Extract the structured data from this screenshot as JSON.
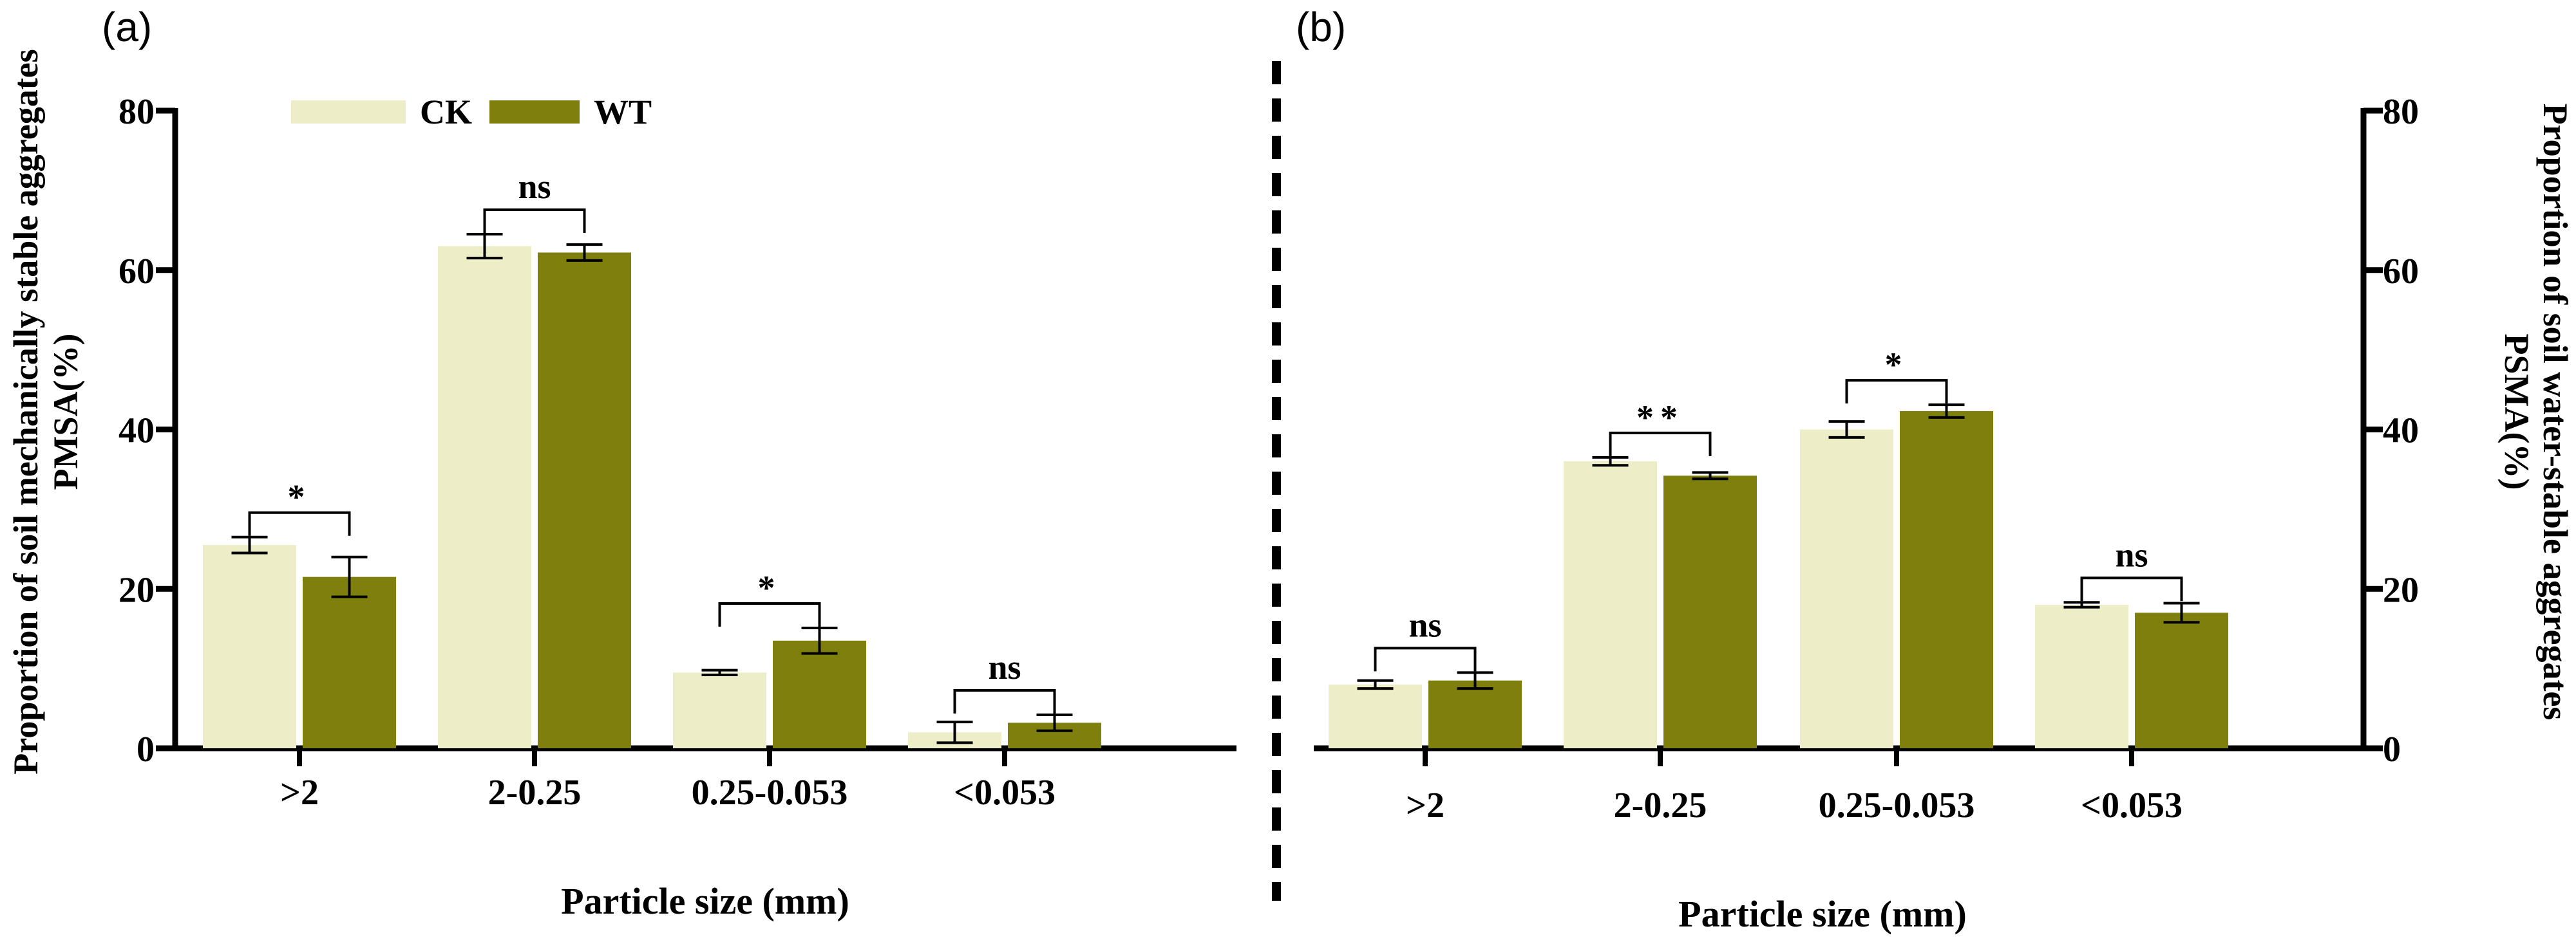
{
  "chart_data": [
    {
      "panel": "(a)",
      "type": "bar",
      "categories": [
        ">2",
        "2-0.25",
        "0.25-0.053",
        "<0.053"
      ],
      "series": [
        {
          "name": "CK",
          "values": [
            25.5,
            63.0,
            9.5,
            2.0
          ],
          "errors": [
            1.0,
            1.5,
            0.3,
            1.3
          ],
          "color": "#EDEDC8"
        },
        {
          "name": "WT",
          "values": [
            21.5,
            62.2,
            13.5,
            3.2
          ],
          "errors": [
            2.5,
            1.0,
            1.6,
            1.0
          ],
          "color": "#7F7F0E"
        }
      ],
      "significance": [
        "*",
        "ns",
        "*",
        "ns"
      ],
      "ylabel": [
        "Proportion of soil mechanically stable aggregates",
        "PMSA(%)"
      ],
      "xlabel": "Particle size (mm)",
      "ylim": [
        0,
        80
      ],
      "yticks": [
        0,
        20,
        40,
        60,
        80
      ],
      "yaxis_side": "left",
      "grid": false,
      "legend_placement": "top-left"
    },
    {
      "panel": "(b)",
      "type": "bar",
      "categories": [
        ">2",
        "2-0.25",
        "0.25-0.053",
        "<0.053"
      ],
      "series": [
        {
          "name": "CK",
          "values": [
            8.0,
            36.0,
            40.0,
            18.0
          ],
          "errors": [
            0.5,
            0.5,
            1.0,
            0.3
          ],
          "color": "#EDEDC8"
        },
        {
          "name": "WT",
          "values": [
            8.5,
            34.2,
            42.3,
            17.0
          ],
          "errors": [
            1.0,
            0.4,
            0.8,
            1.2
          ],
          "color": "#7F7F0E"
        }
      ],
      "significance": [
        "ns",
        "**",
        "*",
        "ns"
      ],
      "ylabel": [
        "Proportion of soil water-stable aggregates",
        "PSMA(%)"
      ],
      "xlabel": "Particle size (mm)",
      "ylim": [
        0,
        80
      ],
      "yticks": [
        0,
        20,
        40,
        60,
        80
      ],
      "yaxis_side": "right",
      "grid": false
    }
  ]
}
